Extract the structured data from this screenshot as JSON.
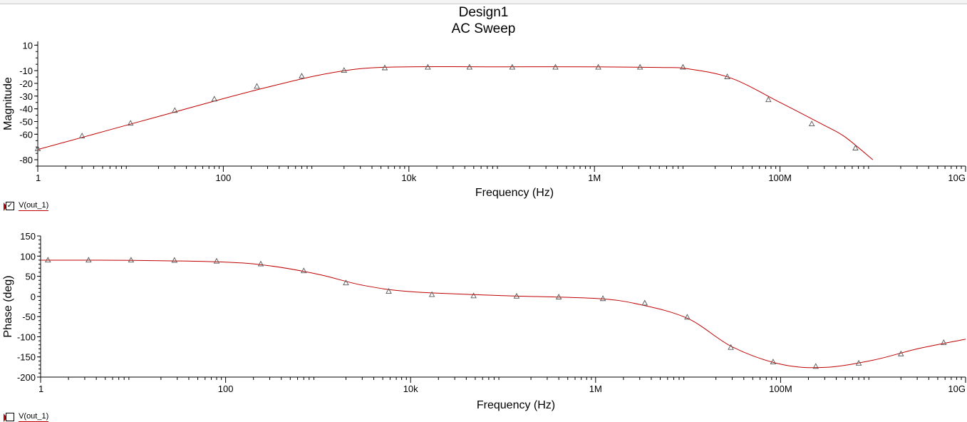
{
  "header": {
    "title": "Design1",
    "subtitle": "AC Sweep"
  },
  "legends": [
    {
      "label": "V(out_1)",
      "checked": true
    },
    {
      "label": "V(out_1)",
      "checked": false
    }
  ],
  "colors": {
    "trace": "#c00000",
    "axis": "#000000",
    "marker": "#555555"
  },
  "chart_data": [
    {
      "type": "line",
      "title": "AC Sweep",
      "xlabel": "Frequency (Hz)",
      "ylabel": "Magnitude",
      "xscale": "log",
      "xlim": [
        1,
        10000000000
      ],
      "ylim": [
        -85,
        13
      ],
      "xticks": [
        1,
        100,
        10000,
        1000000,
        100000000,
        10000000000
      ],
      "xtick_labels": [
        "1",
        "100",
        "10k",
        "1M",
        "100M",
        "10G"
      ],
      "yticks": [
        10,
        -10,
        -20,
        -30,
        -40,
        -50,
        -60,
        -80
      ],
      "ytick_labels": [
        "10",
        "-10",
        "-20",
        "-30",
        "-40",
        "-50",
        "-60",
        "-80"
      ],
      "series": [
        {
          "name": "V(out_1)",
          "x": [
            1,
            3,
            10,
            30,
            100,
            300,
            1000,
            3000,
            10000,
            100000,
            1000000,
            5000000,
            10000000,
            30000000,
            100000000,
            300000000,
            500000000,
            1000000000
          ],
          "values": [
            -72,
            -62.5,
            -52,
            -42.5,
            -32,
            -23,
            -14,
            -8.5,
            -7,
            -7,
            -7,
            -7.5,
            -8.5,
            -16,
            -35,
            -53,
            -62,
            -80
          ],
          "markers_x": [
            1,
            3,
            10,
            30,
            80,
            230,
            700,
            2000,
            5500,
            16000,
            45000,
            130000,
            380000,
            1100000,
            3100000,
            9000000,
            27000000,
            75000000,
            220000000,
            650000000
          ],
          "markers_y": [
            -71.5,
            -61.5,
            -51.5,
            -41.5,
            -32.5,
            -22.5,
            -14.5,
            -10,
            -8,
            -7.5,
            -7.5,
            -7.5,
            -7.5,
            -7.5,
            -7.5,
            -7.5,
            -15,
            -33,
            -52,
            -71
          ]
        }
      ]
    },
    {
      "type": "line",
      "xlabel": "Frequency (Hz)",
      "ylabel": "Phase (deg)",
      "xscale": "log",
      "xlim": [
        1,
        10000000000
      ],
      "ylim": [
        -200,
        150
      ],
      "xticks": [
        1,
        100,
        10000,
        1000000,
        100000000,
        10000000000
      ],
      "xtick_labels": [
        "1",
        "100",
        "10k",
        "1M",
        "100M",
        "10G"
      ],
      "yticks": [
        150,
        100,
        50,
        0,
        -50,
        -100,
        -150,
        -200
      ],
      "ytick_labels": [
        "150",
        "100",
        "50",
        "0",
        "-50",
        "-100",
        "-150",
        "-200"
      ],
      "series": [
        {
          "name": "V(out_1)",
          "x": [
            1,
            10,
            100,
            300,
            1000,
            3000,
            10000,
            100000,
            1000000,
            3000000,
            10000000,
            30000000,
            100000000,
            300000000,
            1000000000,
            3000000000,
            10000000000
          ],
          "values": [
            90,
            89.5,
            85,
            76,
            55,
            28,
            12,
            2,
            -5,
            -20,
            -55,
            -125,
            -168,
            -176,
            -158,
            -130,
            -106
          ],
          "markers_x": [
            1.2,
            3.3,
            9.5,
            28,
            80,
            240,
            700,
            2000,
            5800,
            17000,
            48000,
            140000,
            400000,
            1200000,
            3400000,
            9800000,
            29000000,
            83000000,
            240000000,
            700000000,
            2000000000,
            5800000000
          ],
          "markers_y": [
            89.5,
            89.5,
            89.5,
            89,
            87,
            80,
            63,
            33,
            12,
            4,
            1,
            0,
            -2,
            -6,
            -17,
            -52,
            -127,
            -163,
            -174,
            -166,
            -143,
            -115
          ]
        }
      ]
    }
  ]
}
